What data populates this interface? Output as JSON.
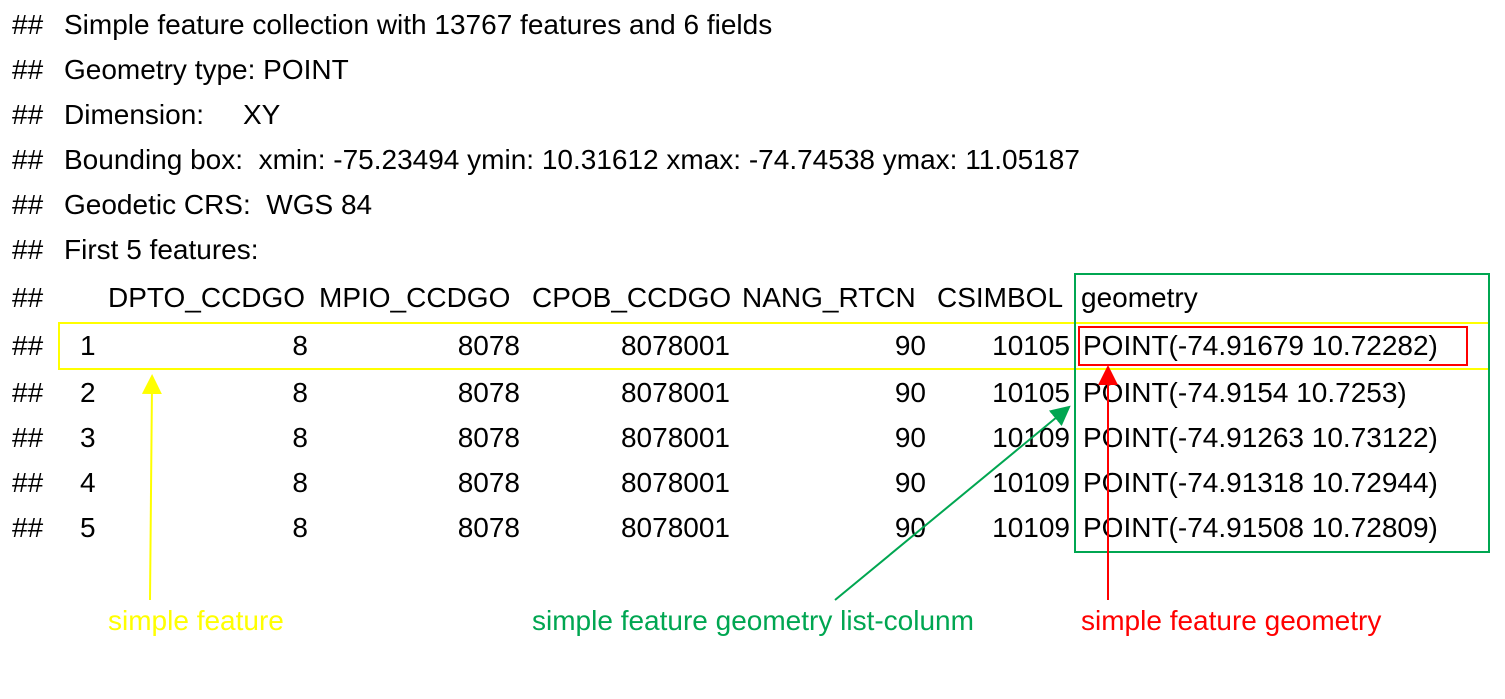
{
  "prefix": "##",
  "header_lines": [
    "Simple feature collection with 13767 features and 6 fields",
    "Geometry type: POINT",
    "Dimension:     XY",
    "Bounding box:  xmin: -75.23494 ymin: 10.31612 xmax: -74.74538 ymax: 11.05187",
    "Geodetic CRS:  WGS 84",
    "First 5 features:"
  ],
  "table": {
    "columns": [
      "DPTO_CCDGO",
      "MPIO_CCDGO",
      "CPOB_CCDGO",
      "NANG_RTCN",
      "CSIMBOL",
      "geometry"
    ],
    "rows": [
      [
        "1",
        "8",
        "8078",
        "8078001",
        "90",
        "10105",
        "POINT(-74.91679 10.72282)"
      ],
      [
        "2",
        "8",
        "8078",
        "8078001",
        "90",
        "10105",
        "POINT(-74.9154 10.7253)"
      ],
      [
        "3",
        "8",
        "8078",
        "8078001",
        "90",
        "10109",
        "POINT(-74.91263 10.73122)"
      ],
      [
        "4",
        "8",
        "8078",
        "8078001",
        "90",
        "10109",
        "POINT(-74.91318 10.72944)"
      ],
      [
        "5",
        "8",
        "8078",
        "8078001",
        "90",
        "10109",
        "POINT(-74.91508 10.72809)"
      ]
    ]
  },
  "annotations": {
    "simple_feature": "simple feature",
    "geometry_list_column": "simple feature geometry list-colunm",
    "feature_geometry": "simple feature geometry"
  },
  "colors": {
    "yellow": "#ffff00",
    "green": "#00a651",
    "red": "#ff0000"
  }
}
